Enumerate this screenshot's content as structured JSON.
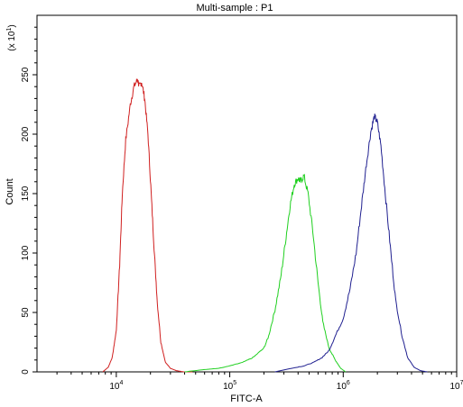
{
  "chart_data": {
    "type": "line",
    "title": "Multi-sample : P1",
    "xlabel": "FITC-A",
    "ylabel": "Count",
    "y_multiplier_label": "(x 10",
    "y_multiplier_exp": "1",
    "y_multiplier_close": ")",
    "x_scale": "log",
    "xlim": [
      2000,
      10000000
    ],
    "ylim": [
      0,
      300
    ],
    "x_ticks": [
      {
        "value": 10000,
        "base": "10",
        "exp": "4"
      },
      {
        "value": 100000,
        "base": "10",
        "exp": "5"
      },
      {
        "value": 1000000,
        "base": "10",
        "exp": "6"
      },
      {
        "value": 10000000,
        "base": "10",
        "exp": "7"
      }
    ],
    "y_ticks": [
      {
        "value": 0,
        "label": "0"
      },
      {
        "value": 50,
        "label": "50"
      },
      {
        "value": 100,
        "label": "100"
      },
      {
        "value": 150,
        "label": "150"
      },
      {
        "value": 200,
        "label": "200"
      },
      {
        "value": 250,
        "label": "250"
      }
    ],
    "grid": false,
    "series": [
      {
        "color": "#d02020",
        "x": [
          7600,
          8500,
          9200,
          10000,
          10700,
          11300,
          12100,
          13300,
          14300,
          15400,
          16000,
          16700,
          17800,
          19000,
          20300,
          21500,
          23000,
          24700,
          27100,
          30000,
          33900,
          39300,
          47000
        ],
        "y": [
          0,
          4,
          12,
          35,
          90,
          150,
          195,
          225,
          240,
          246,
          240,
          244,
          230,
          200,
          150,
          105,
          58,
          25,
          8,
          3,
          1,
          0,
          0
        ]
      },
      {
        "color": "#20d020",
        "x": [
          40000,
          60000,
          80000,
          100000,
          130000,
          160000,
          200000,
          220000,
          250000,
          280000,
          310000,
          340000,
          370000,
          400000,
          420000,
          450000,
          490000,
          540000,
          600000,
          660000,
          750000,
          850000,
          950000,
          1050000
        ],
        "y": [
          0,
          2,
          3,
          5,
          8,
          12,
          20,
          30,
          52,
          78,
          110,
          140,
          158,
          163,
          160,
          165,
          150,
          118,
          75,
          42,
          20,
          10,
          3,
          0
        ]
      },
      {
        "color": "#202090",
        "x": [
          250000,
          350000,
          450000,
          550000,
          650000,
          750000,
          850000,
          1000000,
          1150000,
          1300000,
          1450000,
          1600000,
          1750000,
          1880000,
          2000000,
          2150000,
          2350000,
          2600000,
          2900000,
          3300000,
          3700000,
          4200000,
          4800000,
          5500000
        ],
        "y": [
          0,
          3,
          5,
          8,
          12,
          18,
          30,
          45,
          70,
          100,
          140,
          175,
          202,
          215,
          210,
          190,
          150,
          105,
          60,
          30,
          12,
          4,
          1,
          0
        ]
      }
    ]
  }
}
